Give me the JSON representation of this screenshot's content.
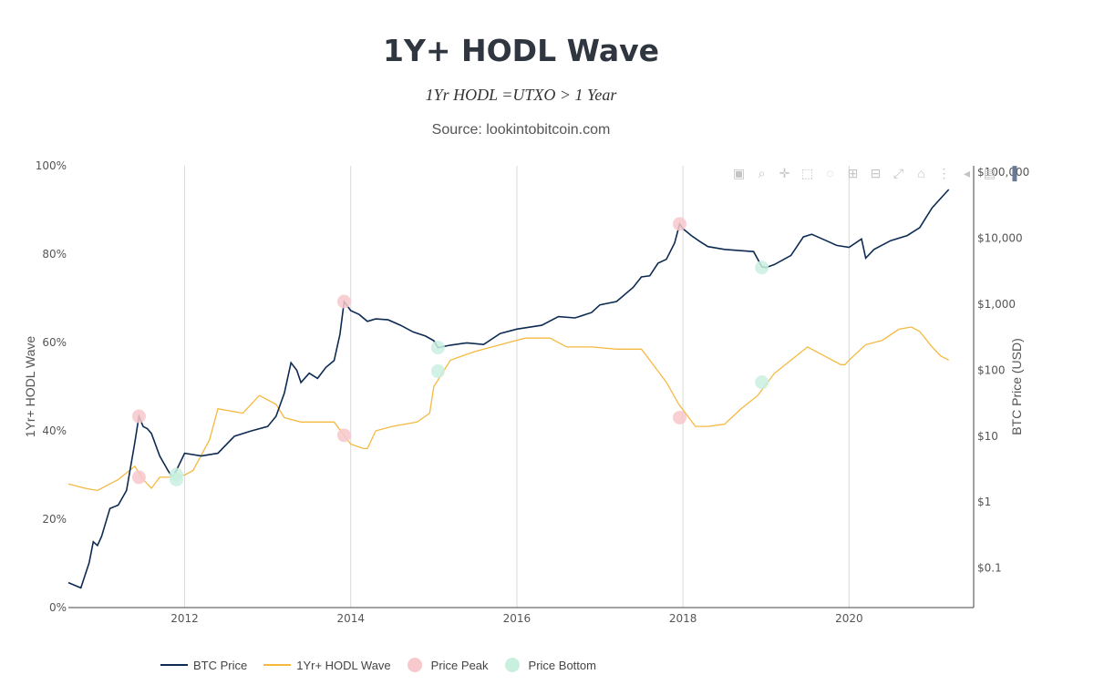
{
  "header": {
    "title": "1Y+ HODL Wave",
    "subtitle": "1Yr HODL =UTXO > 1 Year",
    "source": "Source: lookintobitcoin.com"
  },
  "colors": {
    "btc": "#0d2b52",
    "hodl": "#f5b942",
    "peak": "#f7c8cc",
    "bottom": "#c9f0df",
    "grid": "#d9d9d9",
    "axis": "#555555"
  },
  "modebar": {
    "buttons": [
      "camera-icon",
      "zoom-icon",
      "pan-icon",
      "box-select-icon",
      "lasso-icon",
      "zoom-in-icon",
      "zoom-out-icon",
      "autoscale-icon",
      "home-icon",
      "spike-lines-icon",
      "hover-closest-icon",
      "hover-compare-icon",
      "plotly-logo-icon"
    ]
  },
  "legend": {
    "btc": "BTC Price",
    "hodl": "1Yr+ HODL Wave",
    "peak": "Price Peak",
    "bottom": "Price Bottom"
  },
  "chart_data": {
    "type": "line",
    "title": "1Y+ HODL Wave",
    "xlabel": "",
    "ylabel": "1Yr+ HODL Wave",
    "y2label": "BTC Price (USD)",
    "xlim": [
      2010.6,
      2021.5
    ],
    "ylim": [
      0,
      100
    ],
    "y2lim_log10": [
      -1.6,
      5.1
    ],
    "x_ticks": [
      2012,
      2014,
      2016,
      2018,
      2020
    ],
    "x_tick_labels": [
      "2012",
      "2014",
      "2016",
      "2018",
      "2020"
    ],
    "y_ticks": [
      0,
      20,
      40,
      60,
      80,
      100
    ],
    "y_tick_labels": [
      "0%",
      "20%",
      "40%",
      "60%",
      "80%",
      "100%"
    ],
    "y2_ticks_log10": [
      -1,
      0,
      1,
      2,
      3,
      4,
      5
    ],
    "y2_tick_labels": [
      "$0.1",
      "$1",
      "$10",
      "$100",
      "$1,000",
      "$10,000",
      "$100,000"
    ],
    "series": [
      {
        "name": "BTC Price",
        "axis": "y2",
        "scale": "log",
        "x": [
          2010.6,
          2010.75,
          2010.85,
          2010.9,
          2010.95,
          2011.0,
          2011.1,
          2011.2,
          2011.3,
          2011.4,
          2011.45,
          2011.5,
          2011.55,
          2011.6,
          2011.7,
          2011.8,
          2011.85,
          2011.9,
          2012.0,
          2012.2,
          2012.4,
          2012.6,
          2012.8,
          2013.0,
          2013.1,
          2013.2,
          2013.28,
          2013.35,
          2013.4,
          2013.5,
          2013.6,
          2013.7,
          2013.8,
          2013.87,
          2013.92,
          2014.0,
          2014.1,
          2014.2,
          2014.3,
          2014.45,
          2014.6,
          2014.75,
          2014.9,
          2015.0,
          2015.05,
          2015.2,
          2015.4,
          2015.6,
          2015.8,
          2016.0,
          2016.3,
          2016.5,
          2016.7,
          2016.9,
          2017.0,
          2017.2,
          2017.4,
          2017.5,
          2017.6,
          2017.7,
          2017.8,
          2017.9,
          2017.96,
          2018.0,
          2018.1,
          2018.2,
          2018.3,
          2018.5,
          2018.7,
          2018.85,
          2018.95,
          2019.0,
          2019.1,
          2019.3,
          2019.45,
          2019.55,
          2019.7,
          2019.85,
          2020.0,
          2020.15,
          2020.2,
          2020.3,
          2020.5,
          2020.7,
          2020.85,
          2021.0,
          2021.1,
          2021.2
        ],
        "values": [
          0.06,
          0.05,
          0.12,
          0.25,
          0.22,
          0.3,
          0.8,
          0.9,
          1.5,
          8,
          20,
          14,
          13,
          11,
          5,
          3,
          2.4,
          3,
          5.5,
          5,
          5.5,
          10,
          12,
          14,
          20,
          45,
          130,
          100,
          65,
          90,
          75,
          110,
          140,
          350,
          1100,
          800,
          700,
          550,
          600,
          580,
          480,
          380,
          330,
          280,
          220,
          240,
          260,
          245,
          360,
          420,
          480,
          650,
          620,
          750,
          980,
          1100,
          1800,
          2600,
          2700,
          4200,
          4800,
          8500,
          16500,
          14000,
          11000,
          9000,
          7500,
          6800,
          6500,
          6300,
          3700,
          3600,
          4000,
          5500,
          10500,
          11500,
          9500,
          7800,
          7300,
          9800,
          5000,
          6800,
          9200,
          11000,
          14500,
          29000,
          40000,
          55000
        ]
      },
      {
        "name": "1Yr+ HODL Wave",
        "axis": "y",
        "x": [
          2010.6,
          2010.8,
          2010.95,
          2011.2,
          2011.4,
          2011.5,
          2011.6,
          2011.7,
          2011.8,
          2012.0,
          2012.1,
          2012.3,
          2012.4,
          2012.7,
          2012.9,
          2013.1,
          2013.2,
          2013.4,
          2013.6,
          2013.8,
          2014.0,
          2014.15,
          2014.2,
          2014.3,
          2014.5,
          2014.8,
          2014.95,
          2015.0,
          2015.1,
          2015.2,
          2015.5,
          2015.7,
          2015.9,
          2016.1,
          2016.4,
          2016.6,
          2016.9,
          2017.2,
          2017.5,
          2017.6,
          2017.8,
          2017.95,
          2018.15,
          2018.3,
          2018.5,
          2018.7,
          2018.9,
          2019.1,
          2019.3,
          2019.5,
          2019.7,
          2019.9,
          2019.95,
          2020.0,
          2020.2,
          2020.4,
          2020.6,
          2020.75,
          2020.85,
          2021.0,
          2021.1,
          2021.2
        ],
        "values": [
          28,
          27,
          26.5,
          29,
          32,
          29,
          27,
          29.5,
          29.5,
          30,
          31,
          38,
          45,
          44,
          48,
          46,
          43,
          42,
          42,
          42,
          37,
          36,
          36,
          40,
          41,
          42,
          44,
          50,
          53,
          56,
          58,
          59,
          60,
          61,
          61,
          59,
          59,
          58.5,
          58.5,
          56,
          51,
          46,
          41,
          41,
          41.5,
          45,
          48,
          53,
          56,
          59,
          57,
          55,
          55,
          56,
          59.5,
          60.5,
          63,
          63.5,
          62.5,
          59,
          57,
          56
        ]
      }
    ],
    "markers": {
      "peaks": [
        {
          "x": 2011.45,
          "series": "BTC Price",
          "value": 20
        },
        {
          "x": 2011.45,
          "series": "1Yr+ HODL Wave",
          "value": 29.5
        },
        {
          "x": 2013.92,
          "series": "BTC Price",
          "value": 1100
        },
        {
          "x": 2013.92,
          "series": "1Yr+ HODL Wave",
          "value": 39
        },
        {
          "x": 2017.96,
          "series": "BTC Price",
          "value": 16500
        },
        {
          "x": 2017.96,
          "series": "1Yr+ HODL Wave",
          "value": 43
        }
      ],
      "bottoms": [
        {
          "x": 2011.9,
          "series": "BTC Price",
          "value": 2.6
        },
        {
          "x": 2011.9,
          "series": "1Yr+ HODL Wave",
          "value": 29
        },
        {
          "x": 2015.05,
          "series": "BTC Price",
          "value": 220
        },
        {
          "x": 2015.05,
          "series": "1Yr+ HODL Wave",
          "value": 53.5
        },
        {
          "x": 2018.95,
          "series": "BTC Price",
          "value": 3600
        },
        {
          "x": 2018.95,
          "series": "1Yr+ HODL Wave",
          "value": 51
        }
      ]
    }
  }
}
